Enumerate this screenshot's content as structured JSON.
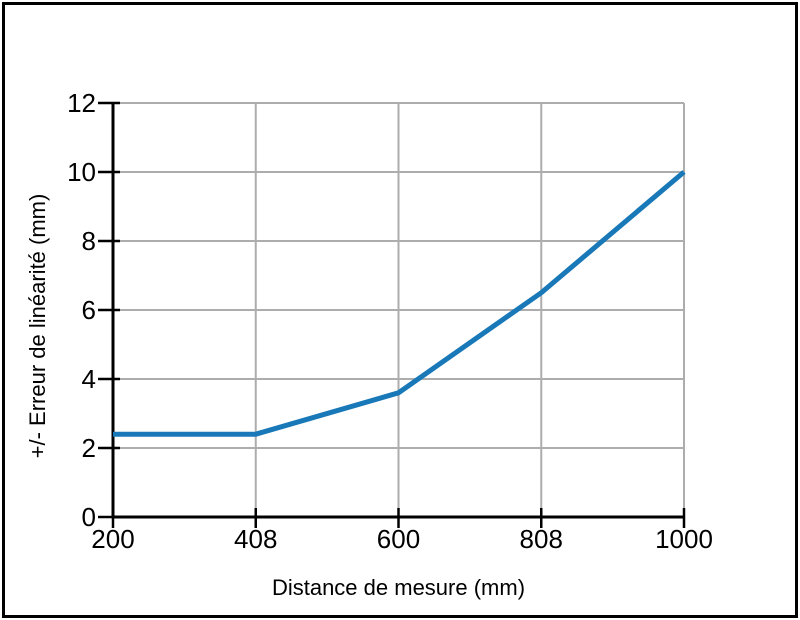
{
  "figure": {
    "background": "#ffffff",
    "border_color": "#000000"
  },
  "chart_data": {
    "type": "line",
    "title": "",
    "xlabel": "Distance de mesure (mm)",
    "ylabel": "+/- Erreur de linéarité (mm)",
    "x_tick_labels": [
      "200",
      "408",
      "600",
      "808",
      "1000"
    ],
    "y_tick_labels": [
      "0",
      "2",
      "4",
      "6",
      "8",
      "10",
      "12"
    ],
    "y_ticks": [
      0,
      2,
      4,
      6,
      8,
      10,
      12
    ],
    "ylim": [
      0,
      12
    ],
    "x_spacing": "even-categorical",
    "grid": true,
    "legend": "none",
    "series": [
      {
        "name": "Erreur de linéarité",
        "x": [
          200,
          408,
          600,
          808,
          1000
        ],
        "values": [
          2.4,
          2.4,
          3.6,
          6.5,
          10.0
        ],
        "color": "#1878b8"
      }
    ],
    "colors": {
      "line": "#1878b8",
      "grid": "#adadad",
      "axis": "#000000",
      "text": "#000000"
    }
  }
}
